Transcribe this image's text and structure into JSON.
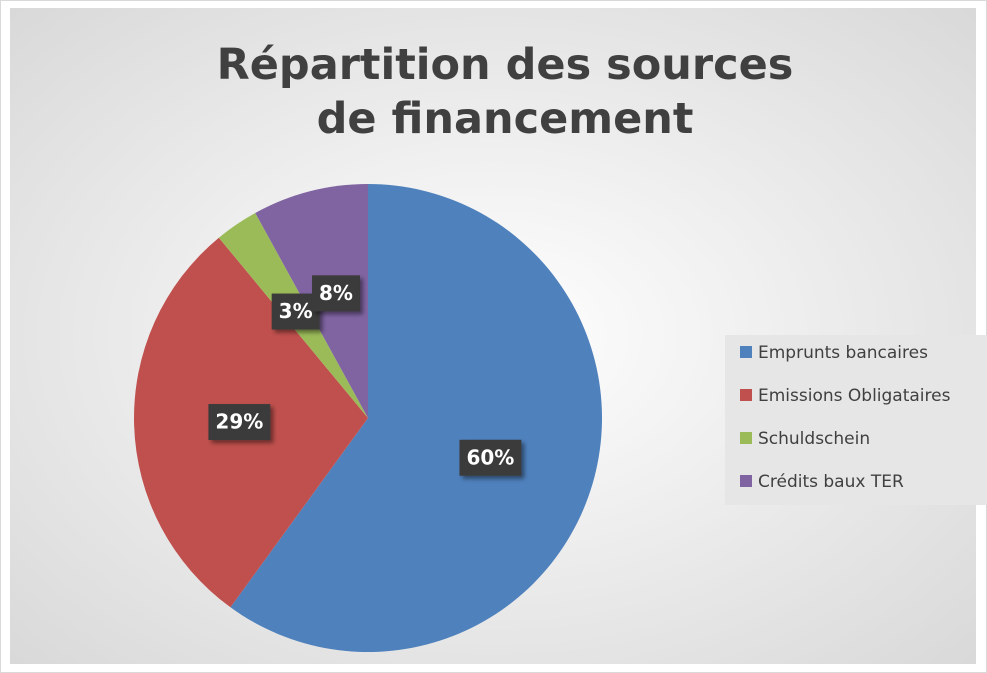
{
  "chart_data": {
    "type": "pie",
    "title": "Répartition des sources de financement",
    "categories": [
      "Emprunts bancaires",
      "Emissions Obligataires",
      "Schuldschein",
      "Crédits baux TER"
    ],
    "values": [
      60,
      29,
      3,
      8
    ],
    "value_labels": [
      "60%",
      "29%",
      "3%",
      "8%"
    ],
    "colors": [
      "#4f81bd",
      "#c0504d",
      "#9bbb59",
      "#8064a2"
    ],
    "legend": "right"
  }
}
